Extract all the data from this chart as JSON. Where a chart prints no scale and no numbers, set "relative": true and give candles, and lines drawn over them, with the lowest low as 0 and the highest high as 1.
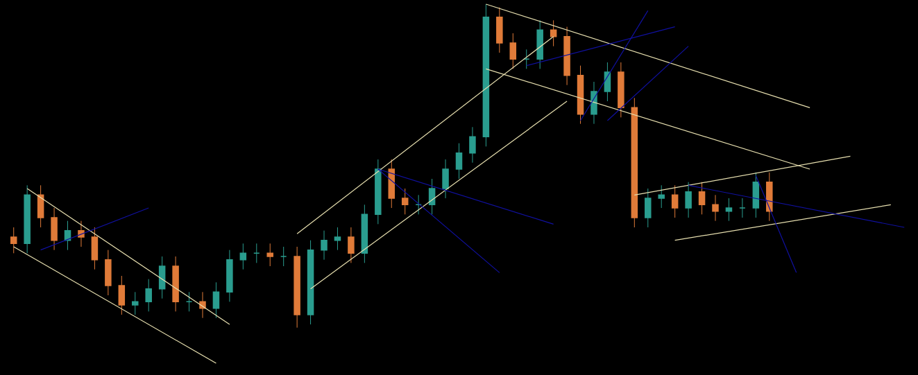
{
  "chart_data": {
    "type": "candlestick",
    "relative": true,
    "categories": [
      null,
      null,
      null,
      null,
      null,
      null,
      null,
      null,
      null,
      null,
      null,
      null,
      null,
      null,
      null,
      null,
      null,
      null,
      null,
      null,
      null,
      null,
      null,
      null,
      null,
      null,
      null,
      null,
      null,
      null,
      null,
      null,
      null,
      null,
      null,
      null,
      null,
      null,
      null,
      null,
      null,
      null,
      null,
      null,
      null,
      null,
      null,
      null,
      null,
      null,
      null,
      null,
      null,
      null,
      null,
      null,
      null,
      null,
      null,
      null,
      null,
      null,
      null,
      null,
      null,
      null,
      null
    ],
    "ohlc": [
      [
        0.28,
        0.31,
        0.23,
        0.26
      ],
      [
        0.26,
        0.44,
        0.23,
        0.41
      ],
      [
        0.41,
        0.44,
        0.31,
        0.34
      ],
      [
        0.34,
        0.37,
        0.24,
        0.27
      ],
      [
        0.27,
        0.33,
        0.24,
        0.3
      ],
      [
        0.3,
        0.33,
        0.25,
        0.28
      ],
      [
        0.28,
        0.31,
        0.18,
        0.21
      ],
      [
        0.21,
        0.24,
        0.1,
        0.13
      ],
      [
        0.13,
        0.16,
        0.04,
        0.07
      ],
      [
        0.07,
        0.11,
        0.04,
        0.08
      ],
      [
        0.08,
        0.15,
        0.05,
        0.12
      ],
      [
        0.12,
        0.22,
        0.09,
        0.19
      ],
      [
        0.19,
        0.22,
        0.05,
        0.08
      ],
      [
        0.08,
        0.11,
        0.05,
        0.08
      ],
      [
        0.08,
        0.11,
        0.03,
        0.06
      ],
      [
        0.06,
        0.14,
        0.03,
        0.11
      ],
      [
        0.11,
        0.24,
        0.08,
        0.21
      ],
      [
        0.21,
        0.26,
        0.18,
        0.23
      ],
      [
        0.23,
        0.26,
        0.2,
        0.23
      ],
      [
        0.23,
        0.26,
        0.19,
        0.22
      ],
      [
        0.22,
        0.25,
        0.19,
        0.22
      ],
      [
        0.22,
        0.25,
        0,
        0.04
      ],
      [
        0.04,
        0.27,
        0.01,
        0.24
      ],
      [
        0.24,
        0.3,
        0.21,
        0.27
      ],
      [
        0.27,
        0.31,
        0.24,
        0.28
      ],
      [
        0.28,
        0.31,
        0.2,
        0.23
      ],
      [
        0.23,
        0.38,
        0.2,
        0.35
      ],
      [
        0.35,
        0.52,
        0.32,
        0.49
      ],
      [
        0.49,
        0.52,
        0.37,
        0.4
      ],
      [
        0.4,
        0.43,
        0.35,
        0.38
      ],
      [
        0.38,
        0.41,
        0.35,
        0.38
      ],
      [
        0.38,
        0.46,
        0.35,
        0.43
      ],
      [
        0.43,
        0.52,
        0.4,
        0.49
      ],
      [
        0.49,
        0.57,
        0.46,
        0.54
      ],
      [
        0.54,
        0.62,
        0.51,
        0.59
      ],
      [
        0.59,
        1,
        0.56,
        0.96
      ],
      [
        0.96,
        0.99,
        0.85,
        0.88
      ],
      [
        0.88,
        0.91,
        0.8,
        0.83
      ],
      [
        0.83,
        0.86,
        0.8,
        0.83
      ],
      [
        0.83,
        0.95,
        0.8,
        0.92
      ],
      [
        0.92,
        0.95,
        0.87,
        0.9
      ],
      [
        0.9,
        0.93,
        0.75,
        0.78
      ],
      [
        0.78,
        0.81,
        0.63,
        0.66
      ],
      [
        0.66,
        0.76,
        0.63,
        0.73
      ],
      [
        0.73,
        0.82,
        0.7,
        0.79
      ],
      [
        0.79,
        0.82,
        0.65,
        0.68
      ],
      [
        0.68,
        0.71,
        0.31,
        0.34
      ],
      [
        0.34,
        0.43,
        0.31,
        0.4
      ],
      [
        0.4,
        0.44,
        0.37,
        0.41
      ],
      [
        0.41,
        0.44,
        0.34,
        0.37
      ],
      [
        0.37,
        0.45,
        0.34,
        0.42
      ],
      [
        0.42,
        0.45,
        0.35,
        0.38
      ],
      [
        0.38,
        0.41,
        0.33,
        0.36
      ],
      [
        0.36,
        0.4,
        0.33,
        0.37
      ],
      [
        0.37,
        0.4,
        0.34,
        0.37
      ],
      [
        0.37,
        0.48,
        0.34,
        0.45
      ],
      [
        0.45,
        0.48,
        0.33,
        0.36
      ],
      null,
      null,
      null,
      null,
      null,
      null,
      null,
      null,
      null,
      null
    ],
    "colors": [
      "#e07b39",
      "#2a9d8f",
      "#e07b39",
      "#e07b39",
      "#2a9d8f",
      "#e07b39",
      "#e07b39",
      "#e07b39",
      "#e07b39",
      "#2a9d8f",
      "#2a9d8f",
      "#2a9d8f",
      "#e07b39",
      "#2a9d8f",
      "#e07b39",
      "#2a9d8f",
      "#2a9d8f",
      "#2a9d8f",
      "#2a9d8f",
      "#e07b39",
      "#2a9d8f",
      "#e07b39",
      "#2a9d8f",
      "#2a9d8f",
      "#2a9d8f",
      "#e07b39",
      "#2a9d8f",
      "#2a9d8f",
      "#e07b39",
      "#e07b39",
      "#2a9d8f",
      "#2a9d8f",
      "#2a9d8f",
      "#2a9d8f",
      "#2a9d8f",
      "#2a9d8f",
      "#e07b39",
      "#e07b39",
      "#2a9d8f",
      "#2a9d8f",
      "#e07b39",
      "#e07b39",
      "#e07b39",
      "#2a9d8f",
      "#2a9d8f",
      "#e07b39",
      "#e07b39",
      "#2a9d8f",
      "#2a9d8f",
      "#e07b39",
      "#2a9d8f",
      "#e07b39",
      "#e07b39",
      "#2a9d8f",
      "#2a9d8f",
      "#2a9d8f",
      "#e07b39",
      null,
      null,
      null,
      null,
      null,
      null,
      null,
      null,
      null,
      null
    ],
    "series": [
      {
        "type": "line",
        "color": "#e8e0b0",
        "values": [
          null,
          0.43,
          null,
          null,
          null,
          null,
          null,
          null,
          null,
          null,
          null,
          null,
          null,
          null,
          null,
          null,
          0.01,
          null,
          null,
          null,
          null,
          null,
          null,
          null,
          null,
          null,
          null,
          null,
          null,
          null,
          null,
          null,
          null,
          null,
          null,
          null,
          null,
          null,
          null,
          null,
          null,
          null,
          null,
          null,
          null,
          null,
          null,
          null,
          null,
          null,
          null,
          null,
          null,
          null,
          null,
          null,
          null,
          null,
          null,
          null,
          null,
          null,
          null,
          null,
          null,
          null,
          null
        ]
      },
      {
        "type": "line",
        "color": "#e8e0b0",
        "values": [
          0.25,
          null,
          null,
          null,
          null,
          null,
          null,
          null,
          null,
          null,
          null,
          null,
          null,
          null,
          null,
          -0.11,
          null,
          null,
          null,
          null,
          null,
          null,
          null,
          null,
          null,
          null,
          null,
          null,
          null,
          null,
          null,
          null,
          null,
          null,
          null,
          null,
          null,
          null,
          null,
          null,
          null,
          null,
          null,
          null,
          null,
          null,
          null,
          null,
          null,
          null,
          null,
          null,
          null,
          null,
          null,
          null,
          null,
          null,
          null,
          null,
          null,
          null,
          null,
          null,
          null,
          null,
          null
        ]
      },
      {
        "type": "line",
        "color": "#e8e0b0",
        "values": [
          null,
          null,
          null,
          null,
          null,
          null,
          null,
          null,
          null,
          null,
          null,
          null,
          null,
          null,
          null,
          null,
          null,
          null,
          null,
          null,
          null,
          0.29,
          null,
          null,
          null,
          null,
          null,
          null,
          null,
          null,
          null,
          null,
          null,
          null,
          null,
          null,
          null,
          null,
          null,
          null,
          0.9,
          null,
          null,
          null,
          null,
          null,
          null,
          null,
          null,
          null,
          null,
          null,
          null,
          null,
          null,
          null,
          null,
          null,
          null,
          null,
          null,
          null,
          null,
          null,
          null,
          null,
          null
        ]
      },
      {
        "type": "line",
        "color": "#e8e0b0",
        "values": [
          null,
          null,
          null,
          null,
          null,
          null,
          null,
          null,
          null,
          null,
          null,
          null,
          null,
          null,
          null,
          null,
          null,
          null,
          null,
          null,
          null,
          null,
          0.12,
          null,
          null,
          null,
          null,
          null,
          null,
          null,
          null,
          null,
          null,
          null,
          null,
          null,
          null,
          null,
          null,
          null,
          null,
          0.7,
          null,
          null,
          null,
          null,
          null,
          null,
          null,
          null,
          null,
          null,
          null,
          null,
          null,
          null,
          null,
          null,
          null,
          null,
          null,
          null,
          null,
          null,
          null,
          null,
          null
        ]
      },
      {
        "type": "line",
        "color": "#e8e0b0",
        "values": [
          null,
          null,
          null,
          null,
          null,
          null,
          null,
          null,
          null,
          null,
          null,
          null,
          null,
          null,
          null,
          null,
          null,
          null,
          null,
          null,
          null,
          null,
          null,
          null,
          null,
          null,
          null,
          null,
          null,
          null,
          null,
          null,
          null,
          null,
          null,
          1.0,
          null,
          null,
          null,
          null,
          null,
          null,
          null,
          null,
          null,
          null,
          null,
          null,
          null,
          null,
          null,
          null,
          null,
          null,
          null,
          null,
          null,
          null,
          null,
          0.68,
          null,
          null,
          null,
          null,
          null,
          null,
          null
        ]
      },
      {
        "type": "line",
        "color": "#e8e0b0",
        "values": [
          null,
          null,
          null,
          null,
          null,
          null,
          null,
          null,
          null,
          null,
          null,
          null,
          null,
          null,
          null,
          null,
          null,
          null,
          null,
          null,
          null,
          null,
          null,
          null,
          null,
          null,
          null,
          null,
          null,
          null,
          null,
          null,
          null,
          null,
          null,
          0.8,
          null,
          null,
          null,
          null,
          null,
          null,
          null,
          null,
          null,
          null,
          null,
          null,
          null,
          null,
          null,
          null,
          null,
          null,
          null,
          null,
          null,
          null,
          null,
          0.49,
          null,
          null,
          null,
          null,
          null,
          null,
          null
        ]
      },
      {
        "type": "line",
        "color": "#e8e0b0",
        "values": [
          null,
          null,
          null,
          null,
          null,
          null,
          null,
          null,
          null,
          null,
          null,
          null,
          null,
          null,
          null,
          null,
          null,
          null,
          null,
          null,
          null,
          null,
          null,
          null,
          null,
          null,
          null,
          null,
          null,
          null,
          null,
          null,
          null,
          null,
          null,
          null,
          null,
          null,
          null,
          null,
          null,
          null,
          null,
          null,
          null,
          null,
          0.41,
          null,
          null,
          null,
          null,
          null,
          null,
          null,
          null,
          null,
          null,
          null,
          null,
          null,
          null,
          null,
          0.53,
          null,
          null,
          null,
          null
        ]
      },
      {
        "type": "line",
        "color": "#e8e0b0",
        "values": [
          null,
          null,
          null,
          null,
          null,
          null,
          null,
          null,
          null,
          null,
          null,
          null,
          null,
          null,
          null,
          null,
          null,
          null,
          null,
          null,
          null,
          null,
          null,
          null,
          null,
          null,
          null,
          null,
          null,
          null,
          null,
          null,
          null,
          null,
          null,
          null,
          null,
          null,
          null,
          null,
          null,
          null,
          null,
          null,
          null,
          null,
          null,
          null,
          null,
          0.27,
          null,
          null,
          null,
          null,
          null,
          null,
          null,
          null,
          null,
          null,
          null,
          null,
          null,
          null,
          null,
          0.38,
          null
        ]
      },
      {
        "type": "line",
        "color": "#1010a0",
        "values": [
          null,
          null,
          0.24,
          null,
          null,
          null,
          null,
          null,
          null,
          null,
          0.37,
          null,
          null,
          null,
          null,
          null,
          null,
          null,
          null,
          null,
          null,
          null,
          null,
          null,
          null,
          null,
          null,
          null,
          null,
          null,
          null,
          null,
          null,
          null,
          null,
          null,
          null,
          null,
          null,
          null,
          null,
          null,
          null,
          null,
          null,
          null,
          null,
          null,
          null,
          null,
          null,
          null,
          null,
          null,
          null,
          null,
          null,
          null,
          null,
          null,
          null,
          null,
          null,
          null,
          null,
          null,
          null
        ]
      },
      {
        "type": "line",
        "color": "#1010a0",
        "values": [
          null,
          null,
          null,
          null,
          null,
          null,
          null,
          null,
          null,
          null,
          null,
          null,
          null,
          null,
          null,
          null,
          null,
          null,
          null,
          null,
          null,
          null,
          null,
          null,
          null,
          null,
          null,
          0.49,
          null,
          null,
          null,
          null,
          null,
          null,
          null,
          null,
          null,
          null,
          null,
          null,
          0.32,
          null,
          null,
          null,
          null,
          null,
          null,
          null,
          null,
          null,
          null,
          null,
          null,
          null,
          null,
          null,
          null,
          null,
          null,
          null,
          null,
          null,
          null,
          null,
          null,
          null,
          null
        ]
      },
      {
        "type": "line",
        "color": "#1010a0",
        "values": [
          null,
          null,
          null,
          null,
          null,
          null,
          null,
          null,
          null,
          null,
          null,
          null,
          null,
          null,
          null,
          null,
          null,
          null,
          null,
          null,
          null,
          null,
          null,
          null,
          null,
          null,
          null,
          0.49,
          null,
          null,
          null,
          null,
          null,
          null,
          null,
          null,
          0.17,
          null,
          null,
          null,
          null,
          null,
          null,
          null,
          null,
          null,
          null,
          null,
          null,
          null,
          null,
          null,
          null,
          null,
          null,
          null,
          null,
          null,
          null,
          null,
          null,
          null,
          null,
          null,
          null,
          null,
          null
        ]
      },
      {
        "type": "line",
        "color": "#1010a0",
        "values": [
          null,
          null,
          null,
          null,
          null,
          null,
          null,
          null,
          null,
          null,
          null,
          null,
          null,
          null,
          null,
          null,
          null,
          null,
          null,
          null,
          null,
          null,
          null,
          null,
          null,
          null,
          null,
          null,
          null,
          null,
          null,
          null,
          null,
          null,
          null,
          null,
          null,
          null,
          0.81,
          null,
          null,
          null,
          null,
          null,
          null,
          null,
          null,
          null,
          null,
          0.93,
          null,
          null,
          null,
          null,
          null,
          null,
          null,
          null,
          null,
          null,
          null,
          null,
          null,
          null,
          null,
          null,
          null
        ]
      },
      {
        "type": "line",
        "color": "#1010a0",
        "values": [
          null,
          null,
          null,
          null,
          null,
          null,
          null,
          null,
          null,
          null,
          null,
          null,
          null,
          null,
          null,
          null,
          null,
          null,
          null,
          null,
          null,
          null,
          null,
          null,
          null,
          null,
          null,
          null,
          null,
          null,
          null,
          null,
          null,
          null,
          null,
          null,
          null,
          null,
          null,
          null,
          null,
          null,
          0.64,
          null,
          null,
          null,
          null,
          0.98,
          null,
          null,
          null,
          null,
          null,
          null,
          null,
          null,
          null,
          null,
          null,
          null,
          null,
          null,
          null,
          null,
          null,
          null,
          null
        ]
      },
      {
        "type": "line",
        "color": "#1010a0",
        "values": [
          null,
          null,
          null,
          null,
          null,
          null,
          null,
          null,
          null,
          null,
          null,
          null,
          null,
          null,
          null,
          null,
          null,
          null,
          null,
          null,
          null,
          null,
          null,
          null,
          null,
          null,
          null,
          null,
          null,
          null,
          null,
          null,
          null,
          null,
          null,
          null,
          null,
          null,
          null,
          null,
          null,
          null,
          null,
          null,
          0.64,
          null,
          null,
          null,
          null,
          null,
          0.87,
          null,
          null,
          null,
          null,
          null,
          null,
          null,
          null,
          null,
          null,
          null,
          null,
          null,
          null,
          null,
          null
        ]
      },
      {
        "type": "line",
        "color": "#1010a0",
        "values": [
          null,
          null,
          null,
          null,
          null,
          null,
          null,
          null,
          null,
          null,
          null,
          null,
          null,
          null,
          null,
          null,
          null,
          null,
          null,
          null,
          null,
          null,
          null,
          null,
          null,
          null,
          null,
          null,
          null,
          null,
          null,
          null,
          null,
          null,
          null,
          null,
          null,
          null,
          null,
          null,
          null,
          null,
          null,
          null,
          null,
          null,
          null,
          null,
          null,
          null,
          0.44,
          null,
          null,
          null,
          null,
          null,
          null,
          null,
          null,
          null,
          null,
          null,
          null,
          null,
          null,
          null,
          0.31
        ]
      },
      {
        "type": "line",
        "color": "#1010a0",
        "values": [
          null,
          null,
          null,
          null,
          null,
          null,
          null,
          null,
          null,
          null,
          null,
          null,
          null,
          null,
          null,
          null,
          null,
          null,
          null,
          null,
          null,
          null,
          null,
          null,
          null,
          null,
          null,
          null,
          null,
          null,
          null,
          null,
          null,
          null,
          null,
          null,
          null,
          null,
          null,
          null,
          null,
          null,
          null,
          null,
          null,
          null,
          null,
          null,
          null,
          null,
          null,
          null,
          null,
          null,
          null,
          0.47,
          null,
          null,
          0.17,
          null,
          null,
          null,
          null,
          null,
          null,
          null,
          null
        ]
      }
    ]
  }
}
